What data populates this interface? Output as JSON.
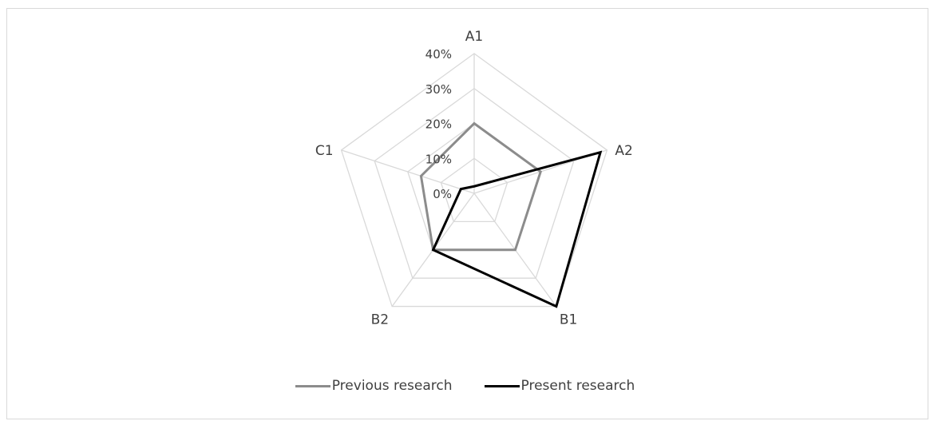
{
  "chart_data": {
    "type": "radar",
    "title": "",
    "categories": [
      "A1",
      "A2",
      "B1",
      "B2",
      "C1"
    ],
    "tick_labels": [
      "0%",
      "10%",
      "20%",
      "30%",
      "40%"
    ],
    "rmax": 40,
    "grid": true,
    "legend_position": "bottom",
    "series": [
      {
        "name": "Previous research",
        "color": "#8c8c8c",
        "values": [
          20,
          20,
          20,
          20,
          16
        ]
      },
      {
        "name": "Present research",
        "color": "#000000",
        "values": [
          2,
          38,
          40,
          20,
          4
        ]
      }
    ]
  }
}
